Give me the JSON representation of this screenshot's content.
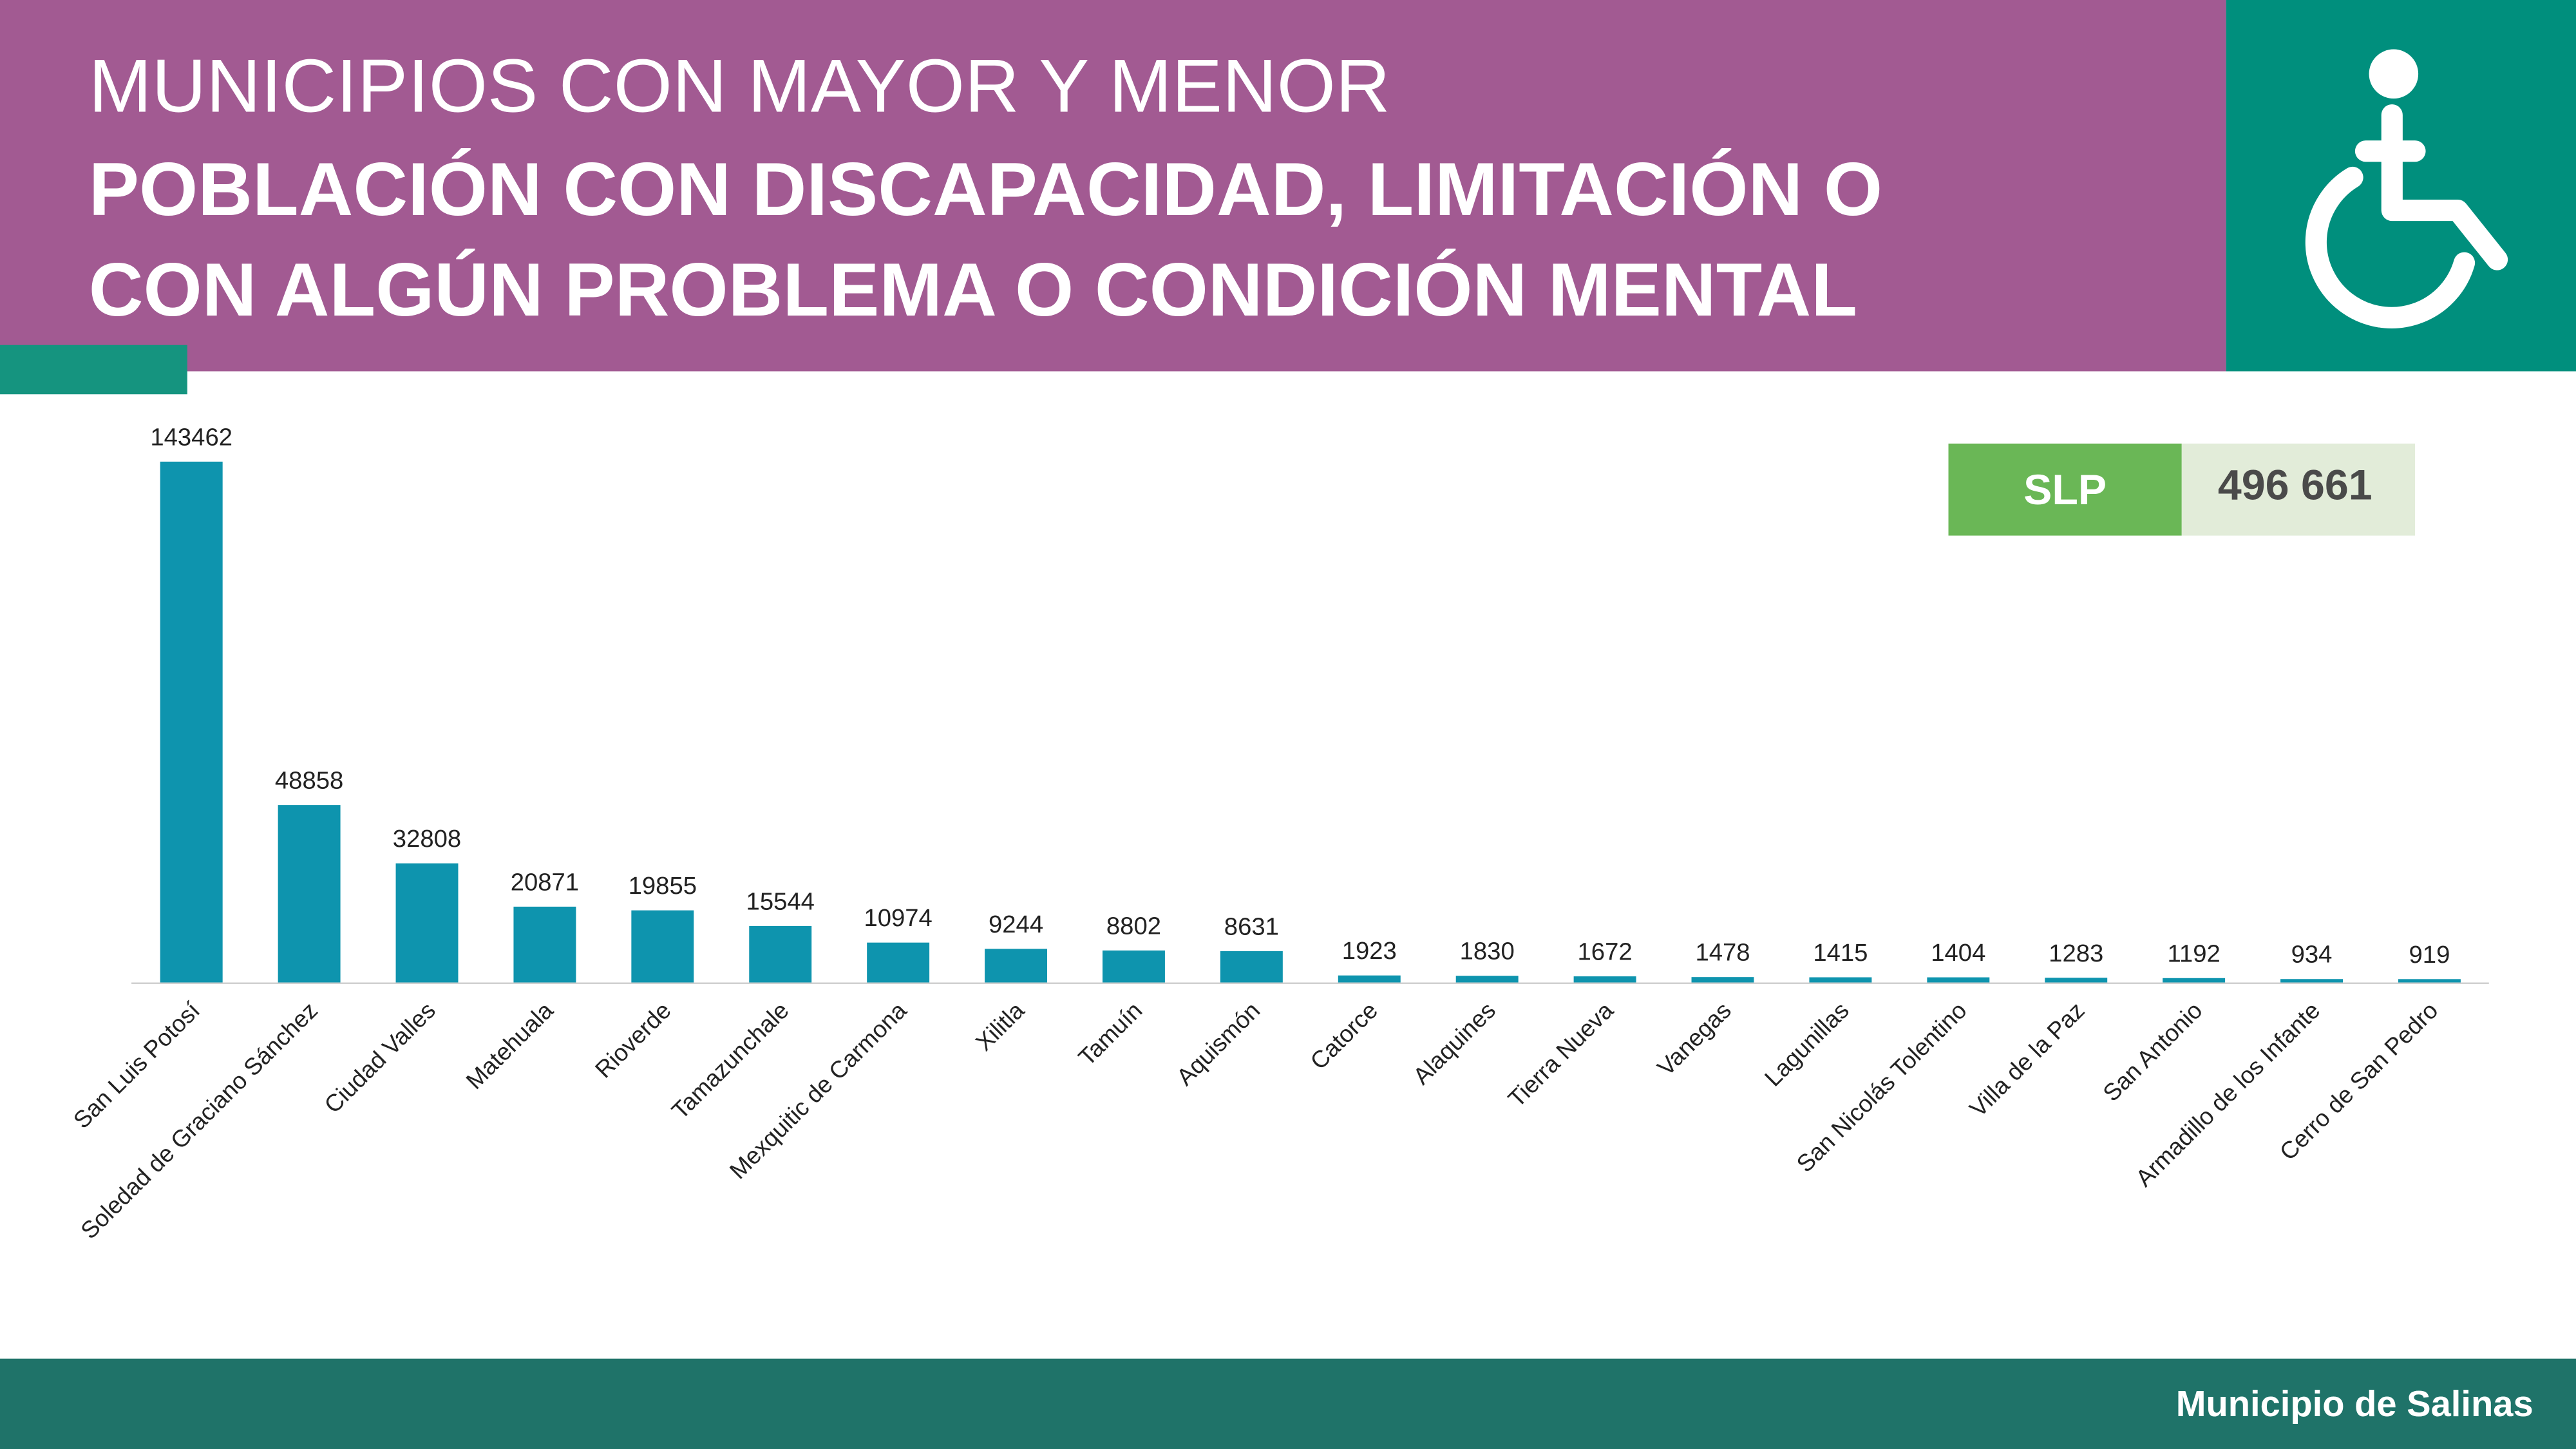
{
  "header": {
    "title": "MUNICIPIOS CON MAYOR Y MENOR",
    "subtitle_lines": [
      "POBLACIÓN CON DISCAPACIDAD, LIMITACIÓN O",
      "CON ALGÚN PROBLEMA O CONDICIÓN MENTAL"
    ]
  },
  "summary": {
    "label": "SLP",
    "value": "496 661"
  },
  "footer": {
    "text": "Municipio de Salinas"
  },
  "chart_data": {
    "type": "bar",
    "color": "#0e94ae",
    "categories": [
      "San Luis Potosí",
      "Soledad de Graciano Sánchez",
      "Ciudad Valles",
      "Matehuala",
      "Rioverde",
      "Tamazunchale",
      "Mexquitic de Carmona",
      "Xilitla",
      "Tamuín",
      "Aquismón",
      "Catorce",
      "Alaquines",
      "Tierra Nueva",
      "Vanegas",
      "Lagunillas",
      "San Nicolás Tolentino",
      "Villa de la Paz",
      "San Antonio",
      "Armadillo de los Infante",
      "Cerro de San Pedro"
    ],
    "values": [
      143462,
      48858,
      32808,
      20871,
      19855,
      15544,
      10974,
      9244,
      8802,
      8631,
      1923,
      1830,
      1672,
      1478,
      1415,
      1404,
      1283,
      1192,
      934,
      919
    ]
  }
}
